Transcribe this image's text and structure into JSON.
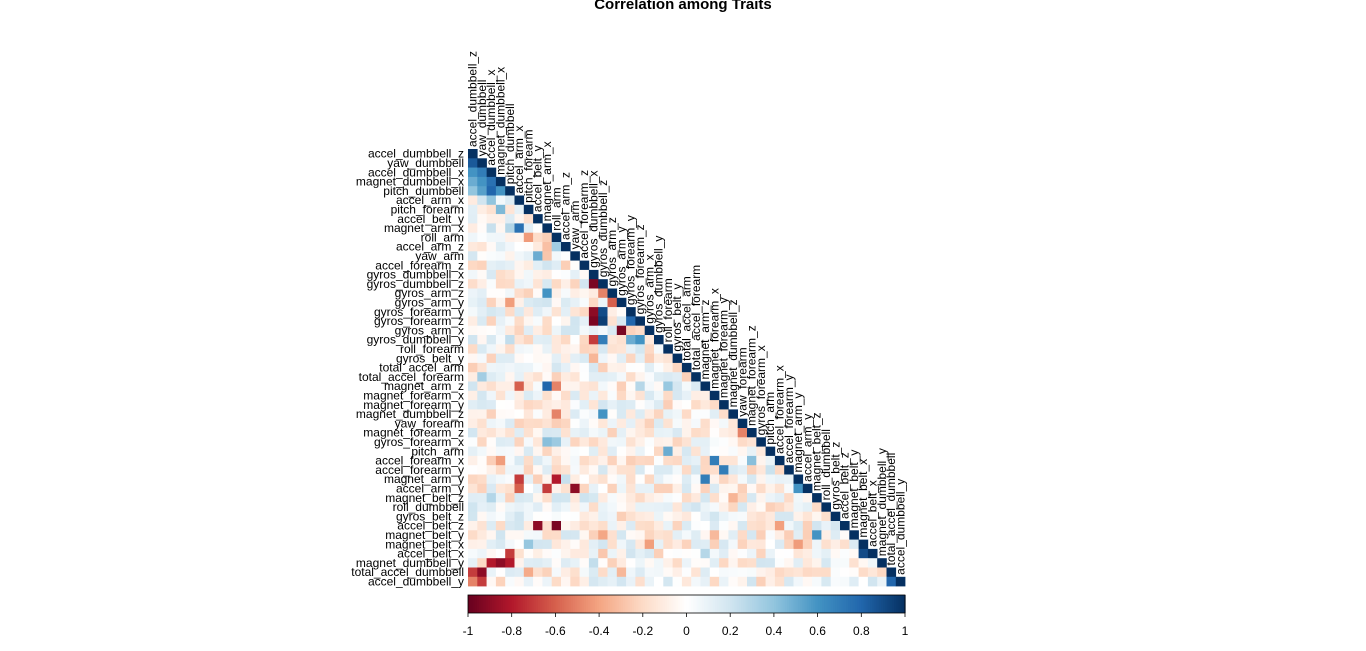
{
  "chart_data": {
    "type": "heatmap",
    "title": "Correlation among Traits",
    "layout": "lower-triangle",
    "variables": [
      "accel_dumbbell_z",
      "yaw_dumbbell",
      "accel_dumbbell_x",
      "magnet_dumbbell_x",
      "pitch_dumbbell",
      "accel_arm_x",
      "pitch_forearm",
      "accel_belt_y",
      "magnet_arm_x",
      "roll_arm",
      "accel_arm_z",
      "yaw_arm",
      "accel_forearm_z",
      "gyros_dumbbell_x",
      "gyros_dumbbell_z",
      "gyros_arm_z",
      "gyros_arm_y",
      "gyros_forearm_y",
      "gyros_forearm_z",
      "gyros_arm_x",
      "gyros_dumbbell_y",
      "roll_forearm",
      "gyros_belt_y",
      "total_accel_arm",
      "total_accel_forearm",
      "magnet_arm_z",
      "magnet_forearm_x",
      "magnet_forearm_y",
      "magnet_dumbbell_z",
      "yaw_forearm",
      "magnet_forearm_z",
      "gyros_forearm_x",
      "pitch_arm",
      "accel_forearm_x",
      "accel_forearm_y",
      "magnet_arm_y",
      "accel_arm_y",
      "magnet_belt_z",
      "roll_dumbbell",
      "gyros_belt_z",
      "accel_belt_z",
      "magnet_belt_y",
      "magnet_belt_x",
      "accel_belt_x",
      "magnet_dumbbell_y",
      "total_accel_dumbbell",
      "accel_dumbbell_y"
    ],
    "color_scale": {
      "min": -1,
      "max": 1,
      "ticks": [
        "-1",
        "-0.8",
        "-0.6",
        "-0.4",
        "-0.2",
        "0",
        "0.2",
        "0.4",
        "0.6",
        "0.8",
        "1"
      ],
      "colors": [
        "#67001F",
        "#B2182B",
        "#D6604D",
        "#F4A582",
        "#FDDBC7",
        "#FFFFFF",
        "#D1E5F0",
        "#92C5DE",
        "#4393C3",
        "#2166AC",
        "#053061"
      ]
    },
    "notable_correlations": [
      {
        "row": "yaw_dumbbell",
        "col": "accel_dumbbell_z",
        "value": 0.85
      },
      {
        "row": "accel_dumbbell_x",
        "col": "accel_dumbbell_z",
        "value": 0.6
      },
      {
        "row": "accel_dumbbell_x",
        "col": "yaw_dumbbell",
        "value": 0.7
      },
      {
        "row": "magnet_dumbbell_x",
        "col": "accel_dumbbell_z",
        "value": 0.5
      },
      {
        "row": "magnet_dumbbell_x",
        "col": "yaw_dumbbell",
        "value": 0.6
      },
      {
        "row": "magnet_dumbbell_x",
        "col": "accel_dumbbell_x",
        "value": 0.75
      },
      {
        "row": "pitch_dumbbell",
        "col": "accel_dumbbell_z",
        "value": 0.4
      },
      {
        "row": "pitch_dumbbell",
        "col": "yaw_dumbbell",
        "value": 0.55
      },
      {
        "row": "pitch_dumbbell",
        "col": "accel_dumbbell_x",
        "value": 0.8
      },
      {
        "row": "pitch_dumbbell",
        "col": "magnet_dumbbell_x",
        "value": 0.6
      },
      {
        "row": "accel_arm_x",
        "col": "accel_dumbbell_x",
        "value": 0.4
      },
      {
        "row": "pitch_forearm",
        "col": "magnet_dumbbell_x",
        "value": 0.45
      },
      {
        "row": "magnet_arm_x",
        "col": "accel_arm_x",
        "value": 0.75
      },
      {
        "row": "magnet_arm_x",
        "col": "pitch_dumbbell",
        "value": 0.3
      },
      {
        "row": "accel_arm_z",
        "col": "magnet_arm_x",
        "value": -0.3
      },
      {
        "row": "accel_arm_z",
        "col": "roll_arm",
        "value": 0.35
      },
      {
        "row": "yaw_arm",
        "col": "accel_belt_y",
        "value": 0.5
      },
      {
        "row": "gyros_dumbbell_z",
        "col": "gyros_dumbbell_x",
        "value": -0.95
      },
      {
        "row": "gyros_arm_z",
        "col": "gyros_dumbbell_z",
        "value": -0.5
      },
      {
        "row": "gyros_arm_z",
        "col": "magnet_arm_x",
        "value": 0.6
      },
      {
        "row": "gyros_arm_y",
        "col": "gyros_arm_z",
        "value": -0.6
      },
      {
        "row": "gyros_forearm_y",
        "col": "gyros_dumbbell_x",
        "value": -0.9
      },
      {
        "row": "gyros_forearm_y",
        "col": "gyros_dumbbell_z",
        "value": 0.9
      },
      {
        "row": "gyros_forearm_z",
        "col": "gyros_dumbbell_x",
        "value": -0.95
      },
      {
        "row": "gyros_forearm_z",
        "col": "gyros_dumbbell_z",
        "value": 0.95
      },
      {
        "row": "gyros_forearm_z",
        "col": "gyros_forearm_y",
        "value": 0.8
      },
      {
        "row": "gyros_arm_x",
        "col": "gyros_arm_y",
        "value": -0.95
      },
      {
        "row": "gyros_dumbbell_y",
        "col": "gyros_dumbbell_x",
        "value": -0.7
      },
      {
        "row": "gyros_dumbbell_y",
        "col": "gyros_dumbbell_z",
        "value": 0.7
      },
      {
        "row": "gyros_dumbbell_y",
        "col": "gyros_forearm_y",
        "value": 0.5
      },
      {
        "row": "gyros_dumbbell_y",
        "col": "gyros_forearm_z",
        "value": 0.6
      },
      {
        "row": "magnet_arm_z",
        "col": "magnet_arm_x",
        "value": 0.8
      },
      {
        "row": "magnet_arm_z",
        "col": "accel_arm_x",
        "value": -0.6
      },
      {
        "row": "magnet_arm_z",
        "col": "roll_arm",
        "value": -0.5
      },
      {
        "row": "magnet_forearm_x",
        "col": "accel_forearm_x",
        "value": 0.7
      },
      {
        "row": "magnet_forearm_y",
        "col": "accel_forearm_y",
        "value": 0.7
      },
      {
        "row": "magnet_dumbbell_z",
        "col": "roll_arm",
        "value": -0.5
      },
      {
        "row": "magnet_dumbbell_z",
        "col": "gyros_dumbbell_z",
        "value": 0.6
      },
      {
        "row": "magnet_forearm_z",
        "col": "yaw_forearm",
        "value": -0.5
      },
      {
        "row": "pitch_arm",
        "col": "roll_forearm",
        "value": 0.5
      },
      {
        "row": "accel_forearm_x",
        "col": "magnet_forearm_x",
        "value": 0.7
      },
      {
        "row": "magnet_arm_y",
        "col": "accel_arm_x",
        "value": -0.7
      },
      {
        "row": "magnet_arm_y",
        "col": "roll_arm",
        "value": -0.8
      },
      {
        "row": "magnet_arm_y",
        "col": "magnet_arm_z",
        "value": 0.7
      },
      {
        "row": "accel_arm_y",
        "col": "accel_arm_x",
        "value": -0.6
      },
      {
        "row": "accel_arm_y",
        "col": "yaw_arm",
        "value": -0.9
      },
      {
        "row": "accel_arm_y",
        "col": "magnet_arm_x",
        "value": -0.7
      },
      {
        "row": "accel_arm_y",
        "col": "magnet_arm_y",
        "value": 0.6
      },
      {
        "row": "magnet_belt_z",
        "col": "magnet_belt_y",
        "value": 0.6
      },
      {
        "row": "accel_belt_z",
        "col": "accel_belt_y",
        "value": -0.9
      },
      {
        "row": "accel_belt_z",
        "col": "roll_arm",
        "value": -0.95
      },
      {
        "row": "magnet_belt_y",
        "col": "magnet_belt_z",
        "value": 0.6
      },
      {
        "row": "magnet_belt_x",
        "col": "accel_belt_x",
        "value": 0.9
      },
      {
        "row": "accel_belt_x",
        "col": "pitch_dumbbell",
        "value": -0.7
      },
      {
        "row": "accel_belt_x",
        "col": "magnet_belt_x",
        "value": 0.9
      },
      {
        "row": "magnet_dumbbell_y",
        "col": "accel_dumbbell_x",
        "value": -0.8
      },
      {
        "row": "magnet_dumbbell_y",
        "col": "magnet_dumbbell_x",
        "value": -0.9
      },
      {
        "row": "magnet_dumbbell_y",
        "col": "pitch_dumbbell",
        "value": -0.8
      },
      {
        "row": "total_accel_dumbbell",
        "col": "accel_dumbbell_z",
        "value": -0.7
      },
      {
        "row": "total_accel_dumbbell",
        "col": "yaw_dumbbell",
        "value": -0.9
      },
      {
        "row": "total_accel_dumbbell",
        "col": "accel_dumbbell_y",
        "value": 0.8
      },
      {
        "row": "accel_dumbbell_y",
        "col": "accel_dumbbell_z",
        "value": -0.5
      },
      {
        "row": "accel_dumbbell_y",
        "col": "yaw_dumbbell",
        "value": -0.7
      },
      {
        "row": "accel_dumbbell_y",
        "col": "total_accel_dumbbell",
        "value": 0.8
      }
    ]
  }
}
